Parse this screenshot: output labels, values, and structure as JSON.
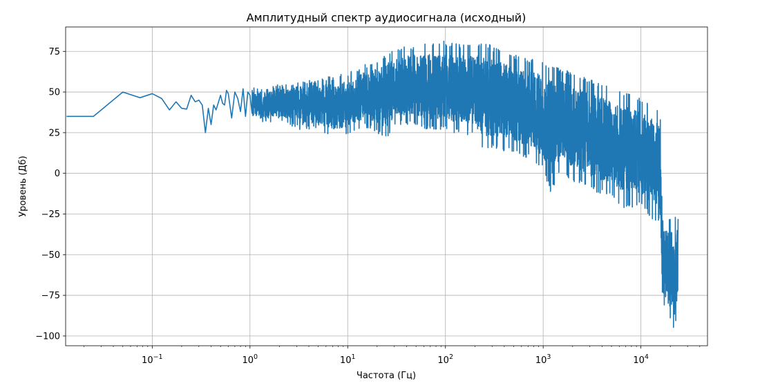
{
  "chart_data": {
    "type": "line",
    "title": "Амплитудный спектр аудиосигнала (исходный)",
    "xlabel": "Частота (Гц)",
    "ylabel": "Уровень (Дб)",
    "x_scale": "log",
    "xlim": [
      0.013,
      48000
    ],
    "ylim": [
      -106,
      90
    ],
    "grid": true,
    "line_color": "#1f77b4",
    "x_ticks": [
      {
        "value": 0.1,
        "base": "10",
        "exp": "−1"
      },
      {
        "value": 1,
        "base": "10",
        "exp": "0"
      },
      {
        "value": 10,
        "base": "10",
        "exp": "1"
      },
      {
        "value": 100,
        "base": "10",
        "exp": "2"
      },
      {
        "value": 1000,
        "base": "10",
        "exp": "3"
      },
      {
        "value": 10000,
        "base": "10",
        "exp": "4"
      }
    ],
    "y_ticks": [
      {
        "value": 75,
        "label": "75"
      },
      {
        "value": 50,
        "label": "50"
      },
      {
        "value": 25,
        "label": "25"
      },
      {
        "value": 0,
        "label": "0"
      },
      {
        "value": -25,
        "label": "−25"
      },
      {
        "value": -50,
        "label": "−50"
      },
      {
        "value": -75,
        "label": "−75"
      },
      {
        "value": -100,
        "label": "−100"
      }
    ],
    "series": [
      {
        "points": [
          [
            0.0133,
            35
          ],
          [
            0.025,
            35
          ],
          [
            0.05,
            50
          ],
          [
            0.075,
            46.5
          ],
          [
            0.1,
            49
          ],
          [
            0.125,
            46
          ],
          [
            0.15,
            39
          ],
          [
            0.175,
            44
          ],
          [
            0.2,
            40
          ],
          [
            0.225,
            39.5
          ],
          [
            0.25,
            48
          ],
          [
            0.275,
            44
          ],
          [
            0.3,
            45
          ],
          [
            0.325,
            42
          ],
          [
            0.35,
            25
          ],
          [
            0.375,
            40
          ],
          [
            0.4,
            30
          ],
          [
            0.425,
            42
          ],
          [
            0.45,
            39
          ],
          [
            0.5,
            48
          ],
          [
            0.525,
            43
          ],
          [
            0.55,
            42
          ],
          [
            0.575,
            51
          ],
          [
            0.6,
            49
          ],
          [
            0.65,
            34
          ],
          [
            0.7,
            50
          ],
          [
            0.75,
            46
          ],
          [
            0.8,
            38
          ],
          [
            0.85,
            52
          ],
          [
            0.9,
            35
          ],
          [
            0.95,
            50
          ],
          [
            1.0,
            48
          ],
          [
            1.05,
            37
          ]
        ],
        "envelope": [
          [
            1.0,
            54,
            34
          ],
          [
            1.5,
            52,
            31
          ],
          [
            2,
            55,
            33
          ],
          [
            3,
            57,
            27
          ],
          [
            5,
            58,
            27
          ],
          [
            7,
            60,
            22
          ],
          [
            10,
            62,
            24
          ],
          [
            15,
            67,
            28
          ],
          [
            20,
            70,
            25
          ],
          [
            25,
            74,
            20
          ],
          [
            30,
            77,
            30
          ],
          [
            50,
            79,
            30
          ],
          [
            70,
            80,
            26
          ],
          [
            90,
            82,
            27
          ],
          [
            120,
            80,
            25
          ],
          [
            200,
            79,
            23
          ],
          [
            250,
            82,
            12
          ],
          [
            300,
            78,
            16
          ],
          [
            500,
            73,
            12
          ],
          [
            800,
            70,
            8
          ],
          [
            1000,
            68,
            2
          ],
          [
            1200,
            67,
            -12
          ],
          [
            1500,
            65,
            0
          ],
          [
            2000,
            62,
            -5
          ],
          [
            3000,
            58,
            -10
          ],
          [
            5000,
            54,
            -15
          ],
          [
            7000,
            50,
            -22
          ],
          [
            10000,
            46,
            -20
          ],
          [
            13000,
            42,
            -28
          ],
          [
            15500,
            40,
            -30
          ],
          [
            15800,
            35,
            -45
          ],
          [
            16000,
            30,
            -70
          ],
          [
            16500,
            -27,
            -80
          ],
          [
            20000,
            -28,
            -90
          ],
          [
            22000,
            -27,
            -98
          ],
          [
            24000,
            -26,
            -82
          ]
        ]
      }
    ]
  }
}
